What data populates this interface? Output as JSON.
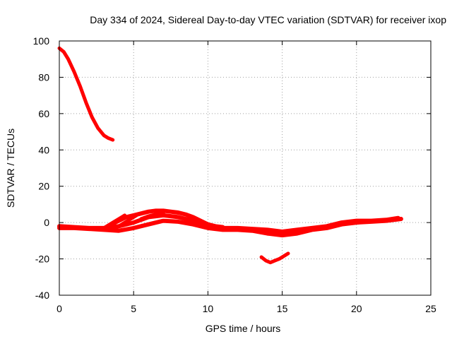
{
  "chart_data": {
    "type": "line",
    "title": "Day 334 of 2024, Sidereal Day-to-day VTEC variation (SDTVAR) for receiver ixop",
    "xlabel": "GPS time / hours",
    "ylabel": "SDTVAR / TECUs",
    "xlim": [
      0,
      25
    ],
    "ylim": [
      -40,
      100
    ],
    "xticks": [
      0,
      5,
      10,
      15,
      20,
      25
    ],
    "yticks": [
      -40,
      -20,
      0,
      20,
      40,
      60,
      80,
      100
    ],
    "xtick_labels": [
      "0",
      "5",
      "10",
      "15",
      "20",
      "25"
    ],
    "ytick_labels": [
      "-40",
      "-20",
      "0",
      "20",
      "40",
      "60",
      "80",
      "100"
    ],
    "grid": true,
    "line_color": "#ff0000",
    "series": [
      {
        "name": "early-pass-descending",
        "x": [
          0.0,
          0.3,
          0.6,
          1.0,
          1.4,
          1.8,
          2.2,
          2.6,
          3.0,
          3.3,
          3.6
        ],
        "y": [
          96,
          94,
          90,
          83,
          75,
          66,
          58,
          52,
          48,
          46.5,
          45.5
        ]
      },
      {
        "name": "main-band-lower",
        "x": [
          0,
          1,
          2,
          3,
          4,
          5,
          6,
          7,
          8,
          9,
          10,
          11,
          12,
          13,
          14,
          15,
          16,
          17,
          18,
          19,
          20,
          21,
          22,
          23
        ],
        "y": [
          -3,
          -3,
          -3.5,
          -4,
          -4.5,
          -3,
          -1,
          1,
          0.5,
          -1,
          -3,
          -4,
          -4,
          -4.5,
          -6,
          -7,
          -6,
          -4,
          -3,
          -1,
          0,
          0.5,
          1,
          2
        ]
      },
      {
        "name": "main-band-mid",
        "x": [
          0,
          1,
          2,
          3,
          4,
          5,
          6,
          7,
          8,
          9,
          10,
          11,
          12,
          13,
          14,
          15,
          16,
          17,
          18,
          19,
          20,
          21,
          22,
          22.8
        ],
        "y": [
          -2,
          -2.5,
          -3,
          -3,
          -2,
          0,
          3,
          4,
          3,
          1,
          -2,
          -3,
          -3,
          -3.5,
          -4,
          -5,
          -4,
          -3,
          -2,
          0,
          1,
          1,
          1.5,
          2.5
        ]
      },
      {
        "name": "main-band-upper",
        "x": [
          3.5,
          4,
          4.5,
          5,
          5.5,
          6,
          6.5,
          7,
          7.5,
          8,
          8.5,
          9,
          9.5,
          10,
          10.5,
          11
        ],
        "y": [
          -1,
          1,
          3,
          4,
          5,
          6,
          6.5,
          6.5,
          6,
          5.5,
          4.5,
          3,
          1,
          -1,
          -2,
          -2.5
        ]
      },
      {
        "name": "short-arc-1",
        "x": [
          2.8,
          3.2,
          3.6,
          4.0,
          4.4
        ],
        "y": [
          -4,
          -2,
          0,
          2,
          4
        ]
      },
      {
        "name": "short-arc-2",
        "x": [
          3.6,
          4.0,
          4.4,
          4.8,
          5.2
        ],
        "y": [
          -4,
          -2,
          0,
          2,
          4
        ]
      },
      {
        "name": "short-arc-3",
        "x": [
          5.5,
          6.0,
          6.5,
          7.0
        ],
        "y": [
          2,
          3.5,
          4.5,
          5
        ]
      },
      {
        "name": "late-dip-arc",
        "x": [
          13.6,
          13.9,
          14.2,
          14.5,
          14.8,
          15.1,
          15.4
        ],
        "y": [
          -19,
          -21,
          -22,
          -21,
          -20,
          -18.5,
          -17
        ]
      }
    ]
  }
}
